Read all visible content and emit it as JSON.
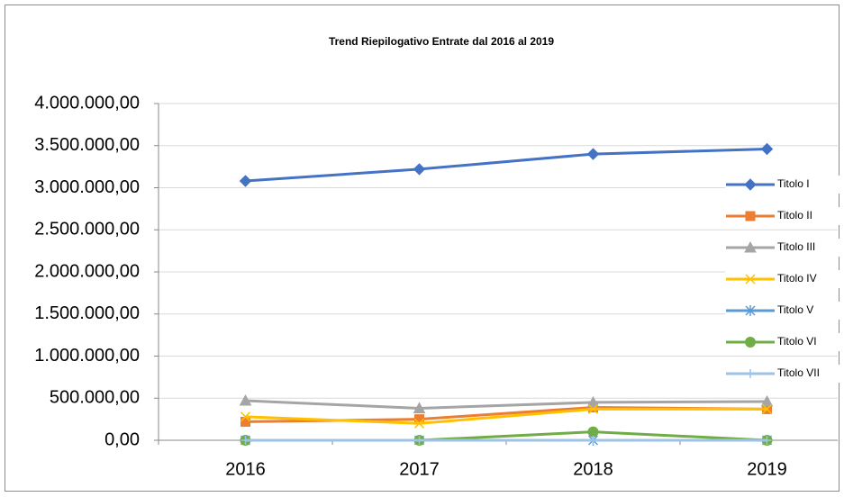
{
  "chart_data": {
    "type": "line",
    "title": "Trend Riepilogativo Entrate dal 2016 al 2019",
    "categories": [
      "2016",
      "2017",
      "2018",
      "2019"
    ],
    "series": [
      {
        "name": "Titolo I",
        "color": "#4472c4",
        "marker": "diamond",
        "values": [
          3080000,
          3220000,
          3400000,
          3460000
        ]
      },
      {
        "name": "Titolo II",
        "color": "#ed7d31",
        "marker": "square",
        "values": [
          220000,
          250000,
          390000,
          370000
        ]
      },
      {
        "name": "Titolo III",
        "color": "#a5a5a5",
        "marker": "triangle",
        "values": [
          470000,
          380000,
          450000,
          460000
        ]
      },
      {
        "name": "Titolo IV",
        "color": "#ffc000",
        "marker": "x",
        "values": [
          280000,
          200000,
          370000,
          370000
        ]
      },
      {
        "name": "Titolo V",
        "color": "#5b9bd5",
        "marker": "star",
        "values": [
          0,
          0,
          0,
          0
        ]
      },
      {
        "name": "Titolo VI",
        "color": "#70ad47",
        "marker": "circle",
        "values": [
          0,
          0,
          100000,
          0
        ]
      },
      {
        "name": "Titolo VII",
        "color": "#9dc3e6",
        "marker": "plus",
        "values": [
          0,
          0,
          0,
          0
        ]
      }
    ],
    "ylim": [
      0,
      4000000
    ],
    "yticks": [
      {
        "value": 0,
        "label": "0,00"
      },
      {
        "value": 500000,
        "label": "500.000,00"
      },
      {
        "value": 1000000,
        "label": "1.000.000,00"
      },
      {
        "value": 1500000,
        "label": "1.500.000,00"
      },
      {
        "value": 2000000,
        "label": "2.000.000,00"
      },
      {
        "value": 2500000,
        "label": "2.500.000,00"
      },
      {
        "value": 3000000,
        "label": "3.000.000,00"
      },
      {
        "value": 3500000,
        "label": "3.500.000,00"
      },
      {
        "value": 4000000,
        "label": "4.000.000,00"
      }
    ],
    "grid": true,
    "legend": "right"
  }
}
